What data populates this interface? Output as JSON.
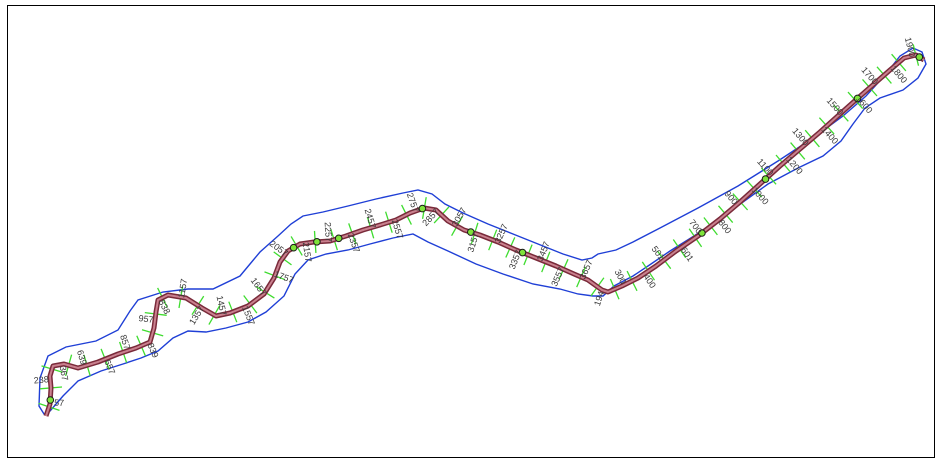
{
  "colors": {
    "background": "#ffffff",
    "frame": "#000000",
    "boundary": "#1f3fd6",
    "centerline_outer": "#7a2a3a",
    "centerline_inner": "#c9808e",
    "cross_section": "#3fdc2f",
    "marker_fill": "#7fe33a",
    "marker_stroke": "#1a1a1a",
    "label": "#3a3a3a"
  },
  "stations": [
    {
      "label": "57"
    },
    {
      "label": "238"
    },
    {
      "label": "367"
    },
    {
      "label": "639"
    },
    {
      "label": "657"
    },
    {
      "label": "857"
    },
    {
      "label": "839"
    },
    {
      "label": "957"
    },
    {
      "label": "838"
    },
    {
      "label": "1157"
    },
    {
      "label": "1357"
    },
    {
      "label": "1457"
    },
    {
      "label": "1557"
    },
    {
      "label": "1657"
    },
    {
      "label": "1757"
    },
    {
      "label": "2057"
    },
    {
      "label": "2157"
    },
    {
      "label": "2257"
    },
    {
      "label": "2357"
    },
    {
      "label": "2457"
    },
    {
      "label": "2557"
    },
    {
      "label": "2757"
    },
    {
      "label": "2857"
    },
    {
      "label": "3057"
    },
    {
      "label": "3157"
    },
    {
      "label": "3257"
    },
    {
      "label": "3357"
    },
    {
      "label": "3457"
    },
    {
      "label": "3557"
    },
    {
      "label": "3657"
    },
    {
      "label": "194"
    },
    {
      "label": "300"
    },
    {
      "label": "400"
    },
    {
      "label": "501"
    },
    {
      "label": "601"
    },
    {
      "label": "700"
    },
    {
      "label": "800"
    },
    {
      "label": "900"
    },
    {
      "label": "1000"
    },
    {
      "label": "1100"
    },
    {
      "label": "1200"
    },
    {
      "label": "1300"
    },
    {
      "label": "1400"
    },
    {
      "label": "1500"
    },
    {
      "label": "1600"
    },
    {
      "label": "1700"
    },
    {
      "label": "1800"
    },
    {
      "label": "1900"
    }
  ]
}
